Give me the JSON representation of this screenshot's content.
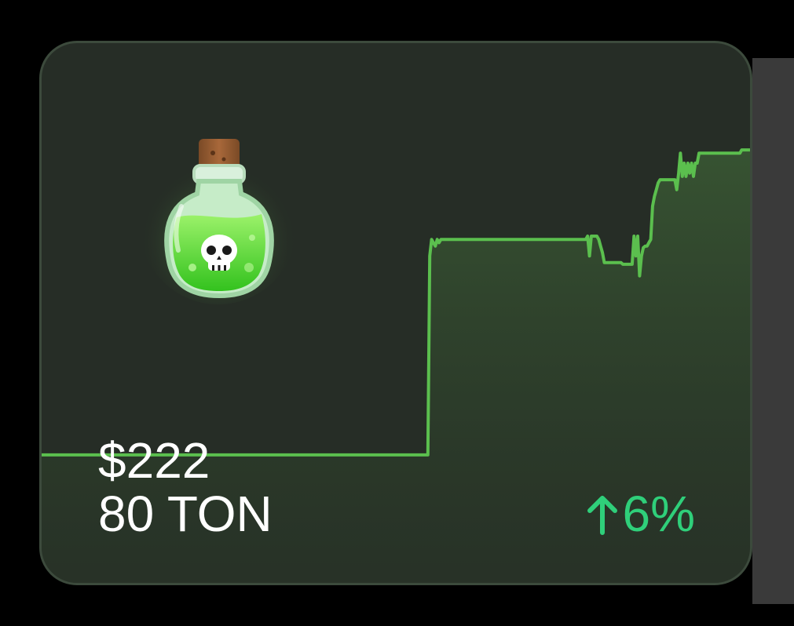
{
  "card": {
    "price_usd": "$222",
    "price_ton": "80 TON",
    "change_value": "6%",
    "change_direction": "up",
    "item_icon": "poison-potion-icon",
    "colors": {
      "card_bg": "#262d26",
      "line": "#5bbf4e",
      "change": "#2fcf7a",
      "text": "#ffffff"
    }
  },
  "chart_data": {
    "type": "line",
    "title": "",
    "xlabel": "",
    "ylabel": "",
    "grid": false,
    "series": [
      {
        "values": [
          80,
          80,
          80,
          80,
          80,
          80,
          80,
          80,
          80,
          80,
          80,
          80,
          80,
          80,
          80,
          80,
          80,
          80,
          80,
          80,
          80,
          80,
          80,
          80,
          80,
          80,
          80,
          80,
          80,
          80,
          80,
          80,
          80,
          80,
          80,
          80,
          80,
          80,
          80,
          80,
          80,
          80,
          80,
          80,
          80,
          80,
          80,
          80,
          80,
          80,
          80,
          80,
          80,
          80,
          80,
          80,
          80,
          80,
          80,
          80,
          80,
          80,
          80,
          80,
          80,
          80,
          80,
          80,
          80,
          80,
          80,
          80,
          80,
          80,
          80,
          80,
          80,
          80,
          80,
          80,
          80,
          80,
          80,
          80,
          80,
          80,
          80,
          80,
          80,
          80,
          80,
          80,
          80,
          80,
          80,
          80,
          80,
          80,
          80,
          80,
          80,
          80,
          80,
          80,
          80,
          80,
          80,
          80,
          80,
          80,
          80,
          80,
          80,
          80,
          80,
          80,
          80,
          80,
          80,
          80,
          80,
          80,
          80,
          80,
          80,
          80,
          80,
          80,
          80,
          80,
          80,
          80,
          80,
          80,
          80,
          80,
          80,
          80,
          80,
          80,
          80,
          80,
          80,
          80,
          80,
          80,
          80,
          80,
          80,
          80,
          80,
          80,
          80,
          80,
          80,
          80,
          80,
          80,
          80,
          80,
          80,
          80,
          80,
          80,
          80,
          80,
          80,
          80,
          80,
          80,
          80,
          80,
          80,
          80,
          80,
          80,
          80,
          80,
          80,
          80,
          80,
          80,
          80,
          80,
          80,
          80,
          80,
          80,
          80,
          80,
          80,
          80,
          80,
          80,
          80,
          80,
          80,
          80,
          80,
          80,
          80,
          80,
          80,
          80,
          80,
          80,
          80,
          80,
          80,
          200,
          210,
          208,
          206,
          210,
          208,
          210,
          210,
          210,
          210,
          210,
          210,
          210,
          210,
          210,
          210,
          210,
          210,
          210,
          210,
          210,
          210,
          210,
          210,
          210,
          210,
          210,
          210,
          210,
          210,
          210,
          210,
          210,
          210,
          210,
          210,
          210,
          210,
          210,
          210,
          210,
          210,
          210,
          210,
          210,
          210,
          210,
          210,
          210,
          210,
          210,
          210,
          210,
          210,
          210,
          210,
          210,
          210,
          210,
          210,
          210,
          210,
          210,
          210,
          210,
          210,
          210,
          210,
          210,
          210,
          210,
          210,
          210,
          210,
          210,
          210,
          210,
          210,
          210,
          210,
          210,
          210,
          210,
          210,
          210,
          212,
          200,
          212,
          212,
          212,
          212,
          210,
          206,
          202,
          196,
          196,
          196,
          196,
          196,
          196,
          196,
          196,
          196,
          196,
          195,
          195,
          195,
          195,
          195,
          195,
          212,
          200,
          212,
          188,
          200,
          205,
          206,
          206,
          208,
          210,
          230,
          236,
          240,
          244,
          246,
          246,
          246,
          246,
          246,
          246,
          246,
          246,
          246,
          240,
          250,
          262,
          248,
          256,
          248,
          256,
          250,
          256,
          248,
          256,
          256,
          262,
          262,
          262,
          262,
          262,
          262,
          262,
          262,
          262,
          262,
          262,
          262,
          262,
          262,
          262,
          262,
          262,
          262,
          262,
          262,
          262,
          262,
          262,
          264,
          264,
          264,
          264,
          264,
          264,
          264,
          264
        ]
      }
    ]
  }
}
